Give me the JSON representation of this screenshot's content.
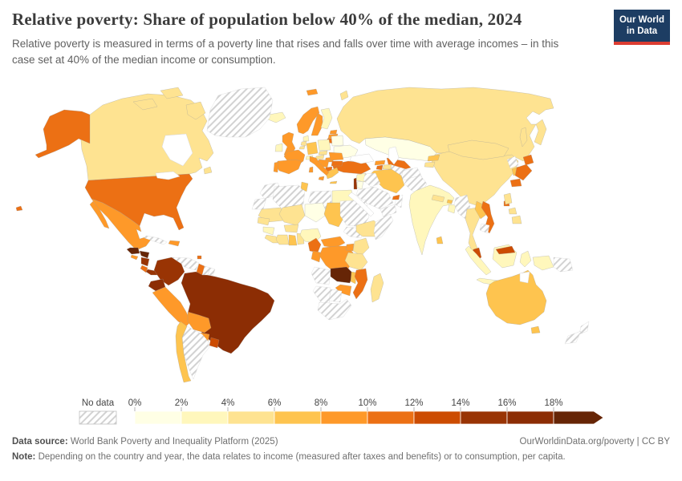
{
  "header": {
    "title": "Relative poverty: Share of population below 40% of the median, 2024",
    "subtitle": "Relative poverty is measured in terms of a poverty line that rises and falls over time with average incomes – in this case set at 40% of the median income or consumption.",
    "logo": {
      "line1": "Our World",
      "line2": "in Data",
      "bg_color": "#1d3d63",
      "accent_color": "#dc3d32"
    }
  },
  "legend": {
    "no_data_label": "No data",
    "tick_labels": [
      "0%",
      "2%",
      "4%",
      "6%",
      "8%",
      "10%",
      "12%",
      "14%",
      "16%",
      "18%"
    ],
    "bin_colors": [
      "#ffffe5",
      "#fff7bc",
      "#fee391",
      "#fec44f",
      "#fe9929",
      "#ec7014",
      "#cc4c02",
      "#993404",
      "#8c2d04",
      "#662506"
    ]
  },
  "footer": {
    "datasource_label": "Data source:",
    "datasource_text": " World Bank Poverty and Inequality Platform (2025)",
    "attribution": "OurWorldinData.org/poverty | CC BY",
    "note_label": "Note:",
    "note_text": " Depending on the country and year, the data relates to income (measured after taxes and benefits) or to consumption, per capita."
  },
  "chart_data": {
    "type": "choropleth_map",
    "title": "Relative poverty: Share of population below 40% of the median",
    "year": 2024,
    "unit": "% of population below 40% of median income or consumption",
    "legend_position": "bottom",
    "bins": {
      "edges": [
        0,
        2,
        4,
        6,
        8,
        10,
        12,
        14,
        16,
        18
      ],
      "colors": [
        "#ffffe5",
        "#fff7bc",
        "#fee391",
        "#fec44f",
        "#fe9929",
        "#ec7014",
        "#cc4c02",
        "#993404",
        "#8c2d04",
        "#662506"
      ],
      "open_ended_top": true
    },
    "values": {
      "United States": 11,
      "Canada": 5,
      "Mexico": 9,
      "Guatemala": 19,
      "Honduras": 19,
      "El Salvador": 9,
      "Nicaragua": 15,
      "Costa Rica": 11,
      "Panama": 15,
      "Cuba": null,
      "Dominican Republic": 9,
      "Trinidad and Tobago": 11,
      "Greenland": null,
      "Colombia": 15,
      "Venezuela": null,
      "Guyana": 11,
      "Suriname": null,
      "French Guiana": null,
      "Ecuador": 17,
      "Peru": 9,
      "Brazil": 17,
      "Bolivia": 9,
      "Paraguay": 9,
      "Chile": 7,
      "Uruguay": 13,
      "Argentina": null,
      "Iceland": 3,
      "Ireland": 3,
      "United Kingdom": 9,
      "Norway": 9,
      "Sweden": 9,
      "Finland": 3,
      "Denmark": 3,
      "Estonia": 9,
      "Latvia": 9,
      "Lithuania": 11,
      "Belarus": 1,
      "Ukraine": 1,
      "Poland": 3,
      "Germany": 7,
      "Netherlands": 5,
      "Belgium": 5,
      "France": 9,
      "Switzerland": 3,
      "Czechia": 5,
      "Austria": 5,
      "Hungary": 9,
      "Romania": 9,
      "Serbia": 9,
      "Albania": 11,
      "Bulgaria": 11,
      "Greece": 7,
      "Italy": 9,
      "Spain": 9,
      "Portugal": 9,
      "Turkey": 11,
      "Georgia": 9,
      "Armenia": 11,
      "Azerbaijan": 5,
      "Russia": 5,
      "Kazakhstan": 1,
      "Uzbekistan": 11,
      "Turkmenistan": null,
      "Kyrgyzstan": 7,
      "Tajikistan": 5,
      "Iran": 7,
      "Iraq": null,
      "Syria": 3,
      "Israel": 15,
      "Jordan": 1,
      "Saudi Arabia": null,
      "Yemen": null,
      "Oman": null,
      "United Arab Emirates": 11,
      "Afghanistan": null,
      "Pakistan": null,
      "Morocco": null,
      "Western Sahara": null,
      "Algeria": null,
      "Tunisia": 7,
      "Libya": null,
      "Egypt": 3,
      "Mauritania": 5,
      "Mali": 5,
      "Niger": 1,
      "Chad": 7,
      "Sudan": null,
      "South Sudan": null,
      "Ethiopia": 5,
      "Somalia": null,
      "Senegal": 5,
      "Guinea": 3,
      "Sierra Leone": 5,
      "Ivory Coast": 5,
      "Ghana": 7,
      "Togo": 5,
      "Burkina Faso": 5,
      "Nigeria": 3,
      "Cameroon": 11,
      "Central African Republic": 9,
      "Congo": 9,
      "Democratic Republic of Congo": 9,
      "Uganda": 9,
      "Kenya": 5,
      "Tanzania": 5,
      "Angola": null,
      "Zambia": 19,
      "Malawi": 7,
      "Mozambique": 11,
      "Zimbabwe": 9,
      "Botswana": null,
      "Namibia": null,
      "South Africa": null,
      "Madagascar": 5,
      "India": 3,
      "Nepal": 5,
      "Bhutan": 7,
      "Bangladesh": 3,
      "Sri Lanka": 7,
      "Myanmar": null,
      "China": 5,
      "Mongolia": 5,
      "North Korea": null,
      "South Korea": 7,
      "Japan": 11,
      "Taiwan": 11,
      "Thailand": 5,
      "Laos": 7,
      "Vietnam": 11,
      "Cambodia": null,
      "Malaysia": 13,
      "Indonesia": 3,
      "Philippines": 5,
      "Papua New Guinea": null,
      "Australia": 7,
      "New Zealand": null
    }
  }
}
